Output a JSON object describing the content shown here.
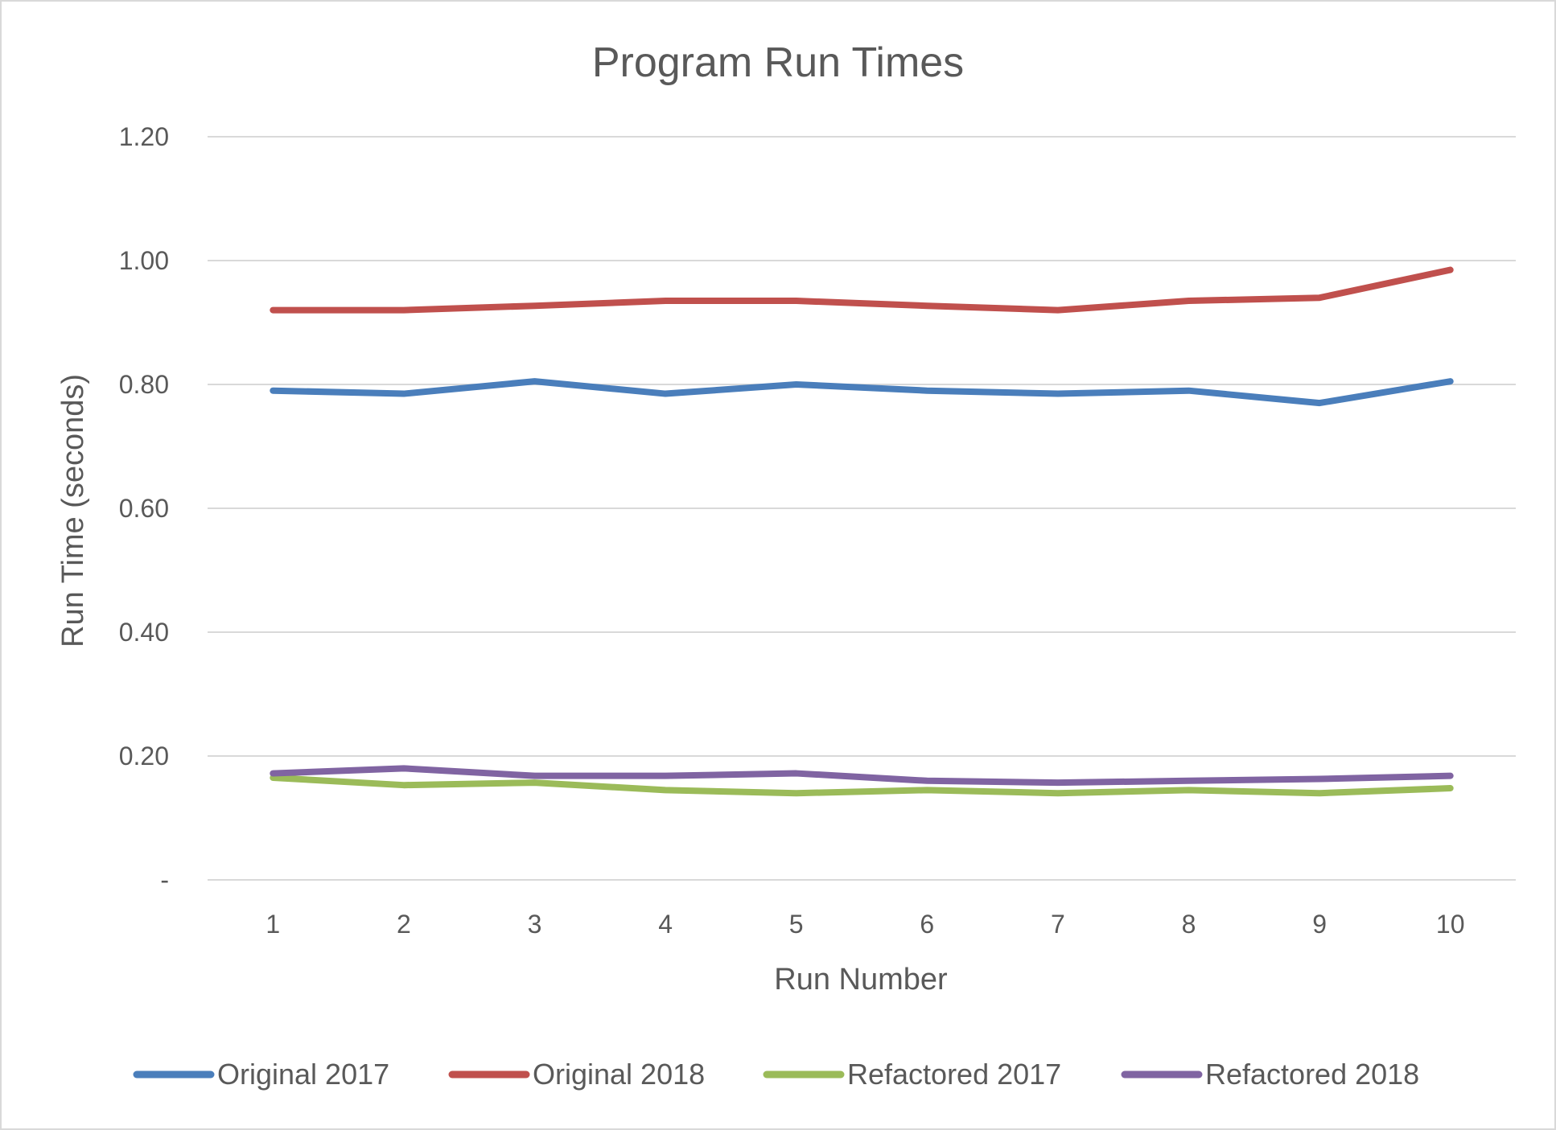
{
  "chart_data": {
    "type": "line",
    "title": "Program Run Times",
    "xlabel": "Run Number",
    "ylabel": "Run Time (seconds)",
    "categories": [
      "1",
      "2",
      "3",
      "4",
      "5",
      "6",
      "7",
      "8",
      "9",
      "10"
    ],
    "ylim": [
      0,
      1.2
    ],
    "yticks": [
      0,
      0.2,
      0.4,
      0.6,
      0.8,
      1.0,
      1.2
    ],
    "ytick_labels": [
      "-",
      "0.20",
      "0.40",
      "0.60",
      "0.80",
      "1.00",
      "1.20"
    ],
    "grid": true,
    "legend_position": "bottom",
    "series": [
      {
        "name": "Original 2017",
        "color": "#4a7ebb",
        "values": [
          0.79,
          0.785,
          0.805,
          0.785,
          0.8,
          0.79,
          0.785,
          0.79,
          0.77,
          0.805
        ]
      },
      {
        "name": "Original 2018",
        "color": "#c0504d",
        "values": [
          0.92,
          0.92,
          0.927,
          0.935,
          0.935,
          0.927,
          0.92,
          0.935,
          0.94,
          0.985
        ]
      },
      {
        "name": "Refactored 2017",
        "color": "#9bbb59",
        "values": [
          0.165,
          0.153,
          0.157,
          0.145,
          0.14,
          0.145,
          0.14,
          0.145,
          0.14,
          0.148
        ]
      },
      {
        "name": "Refactored 2018",
        "color": "#8064a2",
        "values": [
          0.172,
          0.18,
          0.168,
          0.168,
          0.172,
          0.16,
          0.157,
          0.16,
          0.163,
          0.168
        ]
      }
    ]
  }
}
